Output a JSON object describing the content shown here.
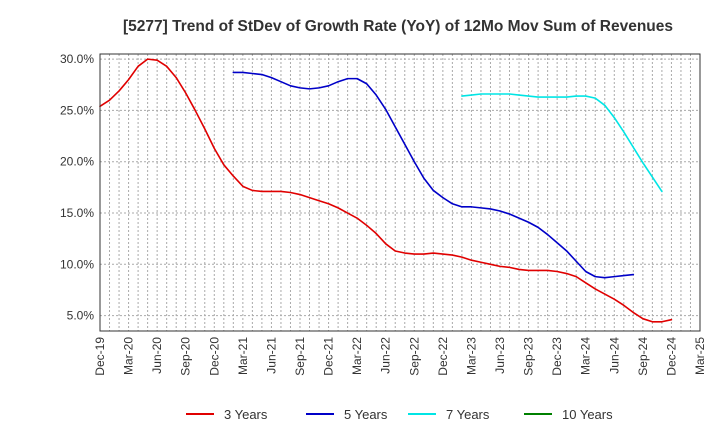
{
  "chart_data": {
    "type": "line",
    "title": "[5277]  Trend of StDev of Growth Rate (YoY) of 12Mo Mov Sum of Revenues",
    "xlabel": "",
    "ylabel": "",
    "x_ticks": [
      "Dec-19",
      "Mar-20",
      "Jun-20",
      "Sep-20",
      "Dec-20",
      "Mar-21",
      "Jun-21",
      "Sep-21",
      "Dec-21",
      "Mar-22",
      "Jun-22",
      "Sep-22",
      "Dec-22",
      "Mar-23",
      "Jun-23",
      "Sep-23",
      "Dec-23",
      "Mar-24",
      "Jun-24",
      "Sep-24",
      "Dec-24",
      "Mar-25"
    ],
    "y_ticks": [
      "5.0%",
      "10.0%",
      "15.0%",
      "20.0%",
      "25.0%",
      "30.0%"
    ],
    "y_tick_values": [
      5,
      10,
      15,
      20,
      25,
      30
    ],
    "ylim": [
      3.5,
      30.5
    ],
    "x_start": "Dec-19",
    "x_step_months": 1,
    "x_total_months": 63,
    "grid": true,
    "legend_position": "bottom",
    "series": [
      {
        "name": "3 Years",
        "color": "#e00000",
        "start_index": 0,
        "values": [
          25.4,
          26.0,
          26.9,
          28.0,
          29.3,
          30.0,
          29.9,
          29.3,
          28.2,
          26.7,
          25.0,
          23.2,
          21.3,
          19.7,
          18.6,
          17.6,
          17.2,
          17.1,
          17.1,
          17.1,
          17.0,
          16.8,
          16.5,
          16.2,
          15.9,
          15.5,
          15.0,
          14.5,
          13.8,
          13.0,
          12.0,
          11.3,
          11.1,
          11.0,
          11.0,
          11.1,
          11.0,
          10.9,
          10.7,
          10.4,
          10.2,
          10.0,
          9.8,
          9.7,
          9.5,
          9.4,
          9.4,
          9.4,
          9.3,
          9.1,
          8.8,
          8.2,
          7.6,
          7.1,
          6.6,
          6.0,
          5.3,
          4.7,
          4.4,
          4.4,
          4.6
        ]
      },
      {
        "name": "5 Years",
        "color": "#0000c8",
        "start_index": 14,
        "values": [
          28.7,
          28.7,
          28.6,
          28.5,
          28.2,
          27.8,
          27.4,
          27.2,
          27.1,
          27.2,
          27.4,
          27.8,
          28.1,
          28.1,
          27.6,
          26.5,
          25.1,
          23.4,
          21.7,
          20.0,
          18.4,
          17.2,
          16.5,
          15.9,
          15.6,
          15.6,
          15.5,
          15.4,
          15.2,
          14.9,
          14.5,
          14.1,
          13.6,
          12.9,
          12.1,
          11.3,
          10.3,
          9.3,
          8.8,
          8.7,
          8.8,
          8.9,
          9.0
        ]
      },
      {
        "name": "7 Years",
        "color": "#00e5e5",
        "start_index": 38,
        "values": [
          26.4,
          26.5,
          26.6,
          26.6,
          26.6,
          26.6,
          26.5,
          26.4,
          26.3,
          26.3,
          26.3,
          26.3,
          26.4,
          26.4,
          26.2,
          25.5,
          24.3,
          22.9,
          21.4,
          19.9,
          18.5,
          17.1
        ]
      },
      {
        "name": "10 Years",
        "color": "#008000",
        "start_index": 0,
        "values": []
      }
    ]
  }
}
